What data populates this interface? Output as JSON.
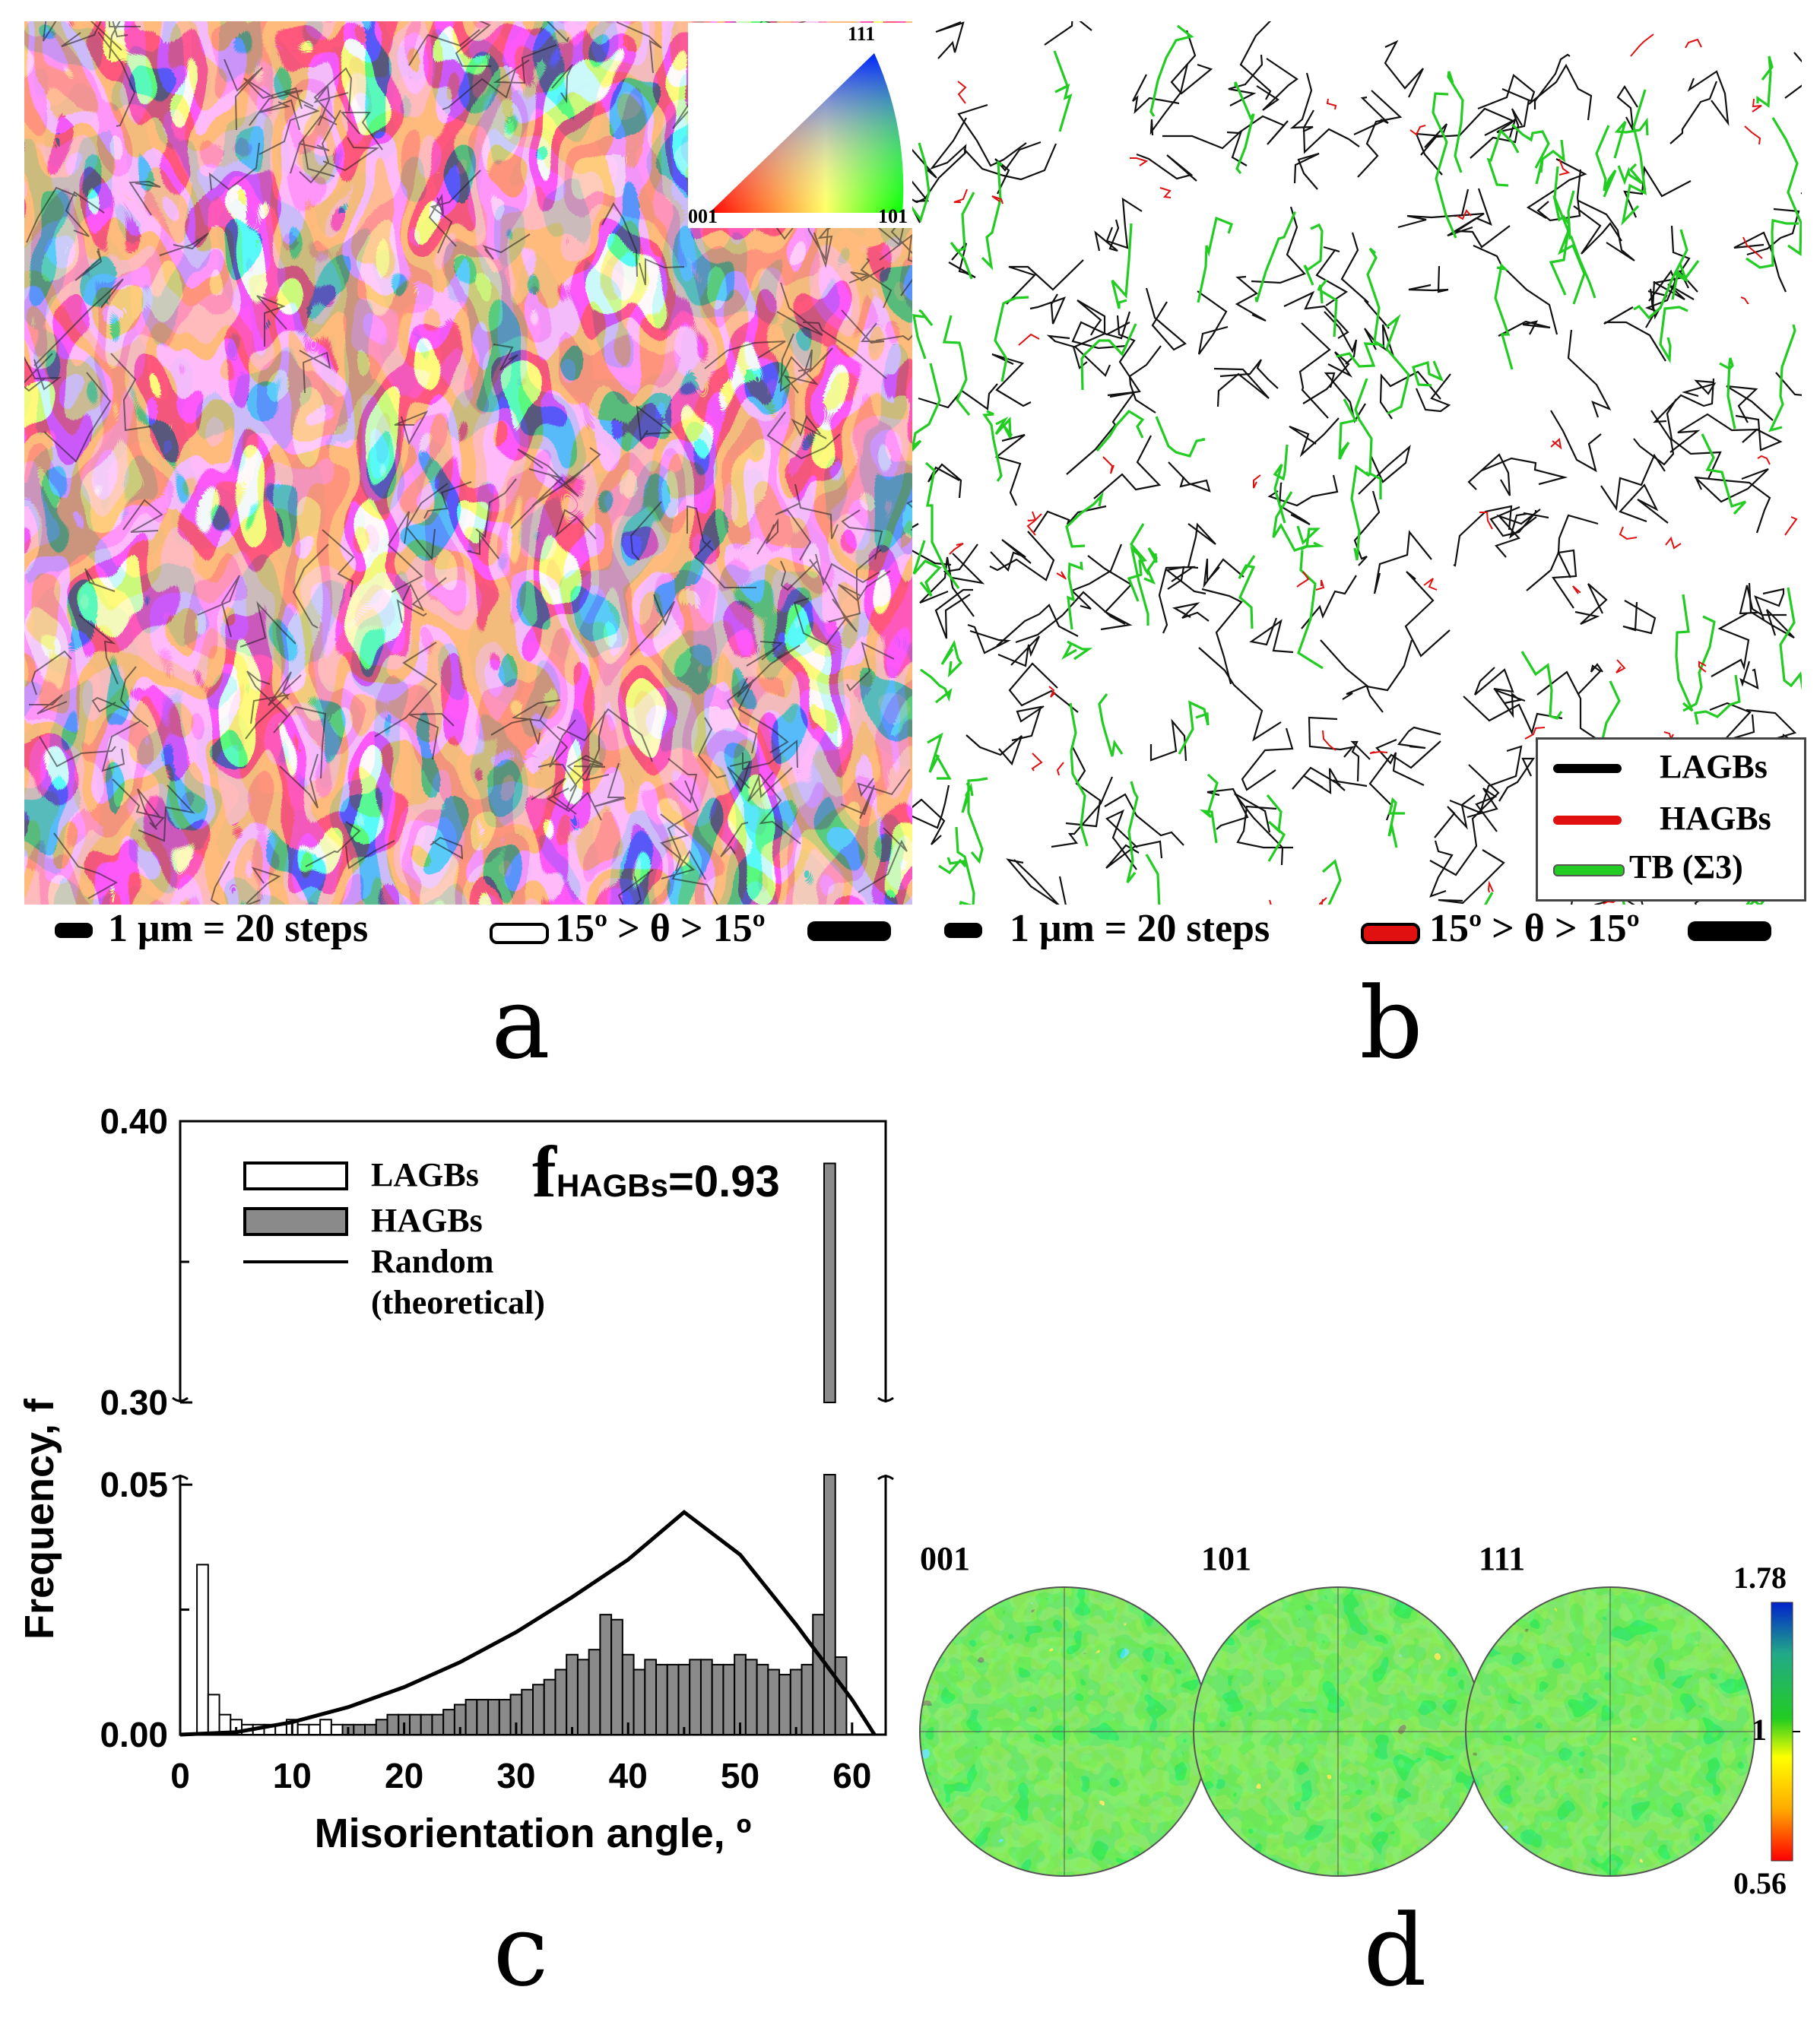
{
  "panel_a": {
    "letter": "a",
    "scale_bar": "1 μm = 20 steps",
    "threshold": "15º > θ > 15º",
    "ipf_key": {
      "top": "111",
      "left": "001",
      "right": "101"
    }
  },
  "panel_b": {
    "letter": "b",
    "scale_bar": "1 μm = 20 steps",
    "threshold": "15º > θ > 15º",
    "legend": [
      {
        "label": "LAGBs",
        "color": "#000000"
      },
      {
        "label": "HAGBs",
        "color": "#e01010"
      },
      {
        "label": "TB (Σ3)",
        "color": "#22cc22"
      }
    ]
  },
  "panel_c": {
    "letter": "c",
    "annotation_main": "f",
    "annotation_sub": "HAGBs",
    "annotation_value": "=0.93"
  },
  "panel_d": {
    "letter": "d",
    "poles": [
      "001",
      "101",
      "111"
    ],
    "colorbar": {
      "max": "1.78",
      "mid": "1",
      "min": "0.56"
    }
  },
  "chart_data": {
    "type": "bar",
    "xlabel": "Misorientation angle, º",
    "ylabel": "Frequency, f",
    "x_ticks": [
      "0",
      "10",
      "20",
      "30",
      "40",
      "50",
      "60"
    ],
    "y_ticks_lower": [
      "0.00",
      "0.05"
    ],
    "y_ticks_upper": [
      "0.30",
      "0.40"
    ],
    "xlim": [
      0,
      63
    ],
    "ylim_lower": [
      0,
      0.052
    ],
    "ylim_upper": [
      0.3,
      0.4
    ],
    "axis_break": true,
    "legend": [
      {
        "label": "LAGBs",
        "style": "white-bar"
      },
      {
        "label": "HAGBs",
        "style": "gray-bar"
      },
      {
        "label": "Random",
        "style": "line"
      },
      {
        "label": "(theoretical)",
        "style": "none"
      }
    ],
    "series": [
      {
        "name": "LAGBs",
        "x": [
          2,
          3,
          4,
          5,
          6,
          7,
          8,
          9,
          10,
          11,
          12,
          13,
          14
        ],
        "values": [
          0.034,
          0.008,
          0.004,
          0.003,
          0.002,
          0.002,
          0.002,
          0.002,
          0.003,
          0.002,
          0.002,
          0.003,
          0.002
        ]
      },
      {
        "name": "HAGBs",
        "x": [
          15,
          16,
          17,
          18,
          19,
          20,
          21,
          22,
          23,
          24,
          25,
          26,
          27,
          28,
          29,
          30,
          31,
          32,
          33,
          34,
          35,
          36,
          37,
          38,
          39,
          40,
          41,
          42,
          43,
          44,
          45,
          46,
          47,
          48,
          49,
          50,
          51,
          52,
          53,
          54,
          55,
          56,
          57,
          58,
          59,
          60
        ],
        "values": [
          0.002,
          0.002,
          0.002,
          0.003,
          0.004,
          0.004,
          0.004,
          0.004,
          0.004,
          0.005,
          0.006,
          0.007,
          0.007,
          0.007,
          0.007,
          0.008,
          0.009,
          0.01,
          0.011,
          0.013,
          0.016,
          0.015,
          0.017,
          0.024,
          0.023,
          0.016,
          0.013,
          0.015,
          0.014,
          0.014,
          0.014,
          0.015,
          0.015,
          0.014,
          0.014,
          0.016,
          0.015,
          0.014,
          0.013,
          0.012,
          0.013,
          0.014,
          0.024,
          0.385,
          0.0155,
          0.0
        ]
      },
      {
        "name": "Random",
        "x": [
          0,
          5,
          10,
          15,
          20,
          25,
          30,
          35,
          40,
          45,
          50,
          55,
          60,
          62
        ],
        "values": [
          0.0,
          0.0005,
          0.0025,
          0.0055,
          0.0095,
          0.0145,
          0.0205,
          0.0275,
          0.035,
          0.0445,
          0.036,
          0.022,
          0.007,
          0.0
        ]
      }
    ]
  }
}
